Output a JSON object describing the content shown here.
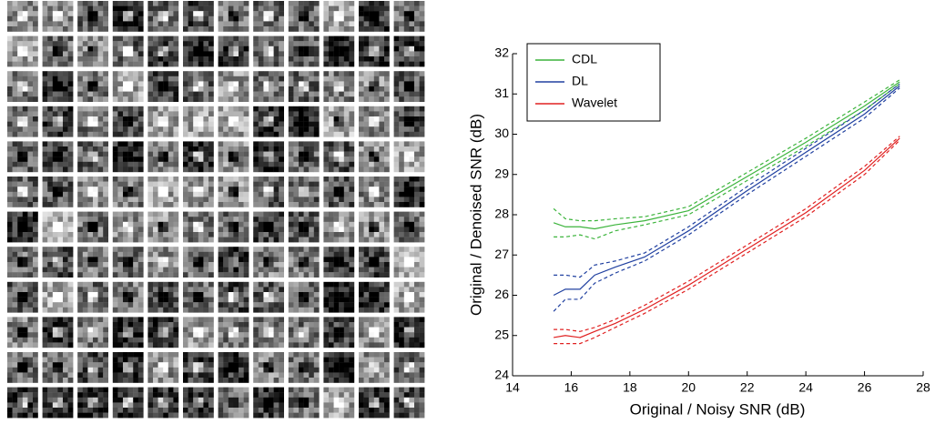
{
  "chart_data": {
    "type": "line",
    "x_label": "Original / Noisy SNR (dB)",
    "y_label": "Original / Denoised SNR (dB)",
    "x": [
      15.4,
      15.8,
      16.3,
      16.8,
      17.5,
      18.5,
      20,
      22,
      24,
      26,
      27.2
    ],
    "xlim": [
      14,
      28
    ],
    "xticks": [
      14,
      16,
      18,
      20,
      22,
      24,
      26,
      28
    ],
    "ylim": [
      24,
      32
    ],
    "yticks": [
      24,
      25,
      26,
      27,
      28,
      29,
      30,
      31,
      32
    ],
    "legend": "upper left",
    "series": [
      {
        "name": "CDL",
        "color": "#3cb43c",
        "values": [
          27.8,
          27.7,
          27.7,
          27.65,
          27.75,
          27.85,
          28.1,
          28.95,
          29.8,
          30.7,
          31.3
        ],
        "upper": [
          28.15,
          27.9,
          27.85,
          27.85,
          27.9,
          27.95,
          28.2,
          29.05,
          29.9,
          30.8,
          31.35
        ],
        "lower": [
          27.45,
          27.45,
          27.5,
          27.4,
          27.6,
          27.75,
          28.0,
          28.85,
          29.7,
          30.6,
          31.25
        ]
      },
      {
        "name": "DL",
        "color": "#2040a0",
        "values": [
          26.0,
          26.15,
          26.15,
          26.5,
          26.7,
          26.95,
          27.6,
          28.6,
          29.55,
          30.5,
          31.2
        ],
        "upper": [
          26.5,
          26.5,
          26.45,
          26.75,
          26.85,
          27.05,
          27.7,
          28.7,
          29.65,
          30.6,
          31.25
        ],
        "lower": [
          25.6,
          25.9,
          25.9,
          26.3,
          26.55,
          26.85,
          27.5,
          28.5,
          29.45,
          30.4,
          31.15
        ]
      },
      {
        "name": "Wavelet",
        "color": "#e02020",
        "values": [
          24.95,
          25.0,
          24.95,
          25.1,
          25.3,
          25.65,
          26.25,
          27.15,
          28.05,
          29.1,
          29.9
        ],
        "upper": [
          25.15,
          25.15,
          25.1,
          25.2,
          25.4,
          25.75,
          26.35,
          27.25,
          28.15,
          29.2,
          29.95
        ],
        "lower": [
          24.8,
          24.8,
          24.8,
          24.95,
          25.2,
          25.55,
          26.15,
          27.05,
          27.95,
          29.0,
          29.85
        ]
      }
    ]
  }
}
